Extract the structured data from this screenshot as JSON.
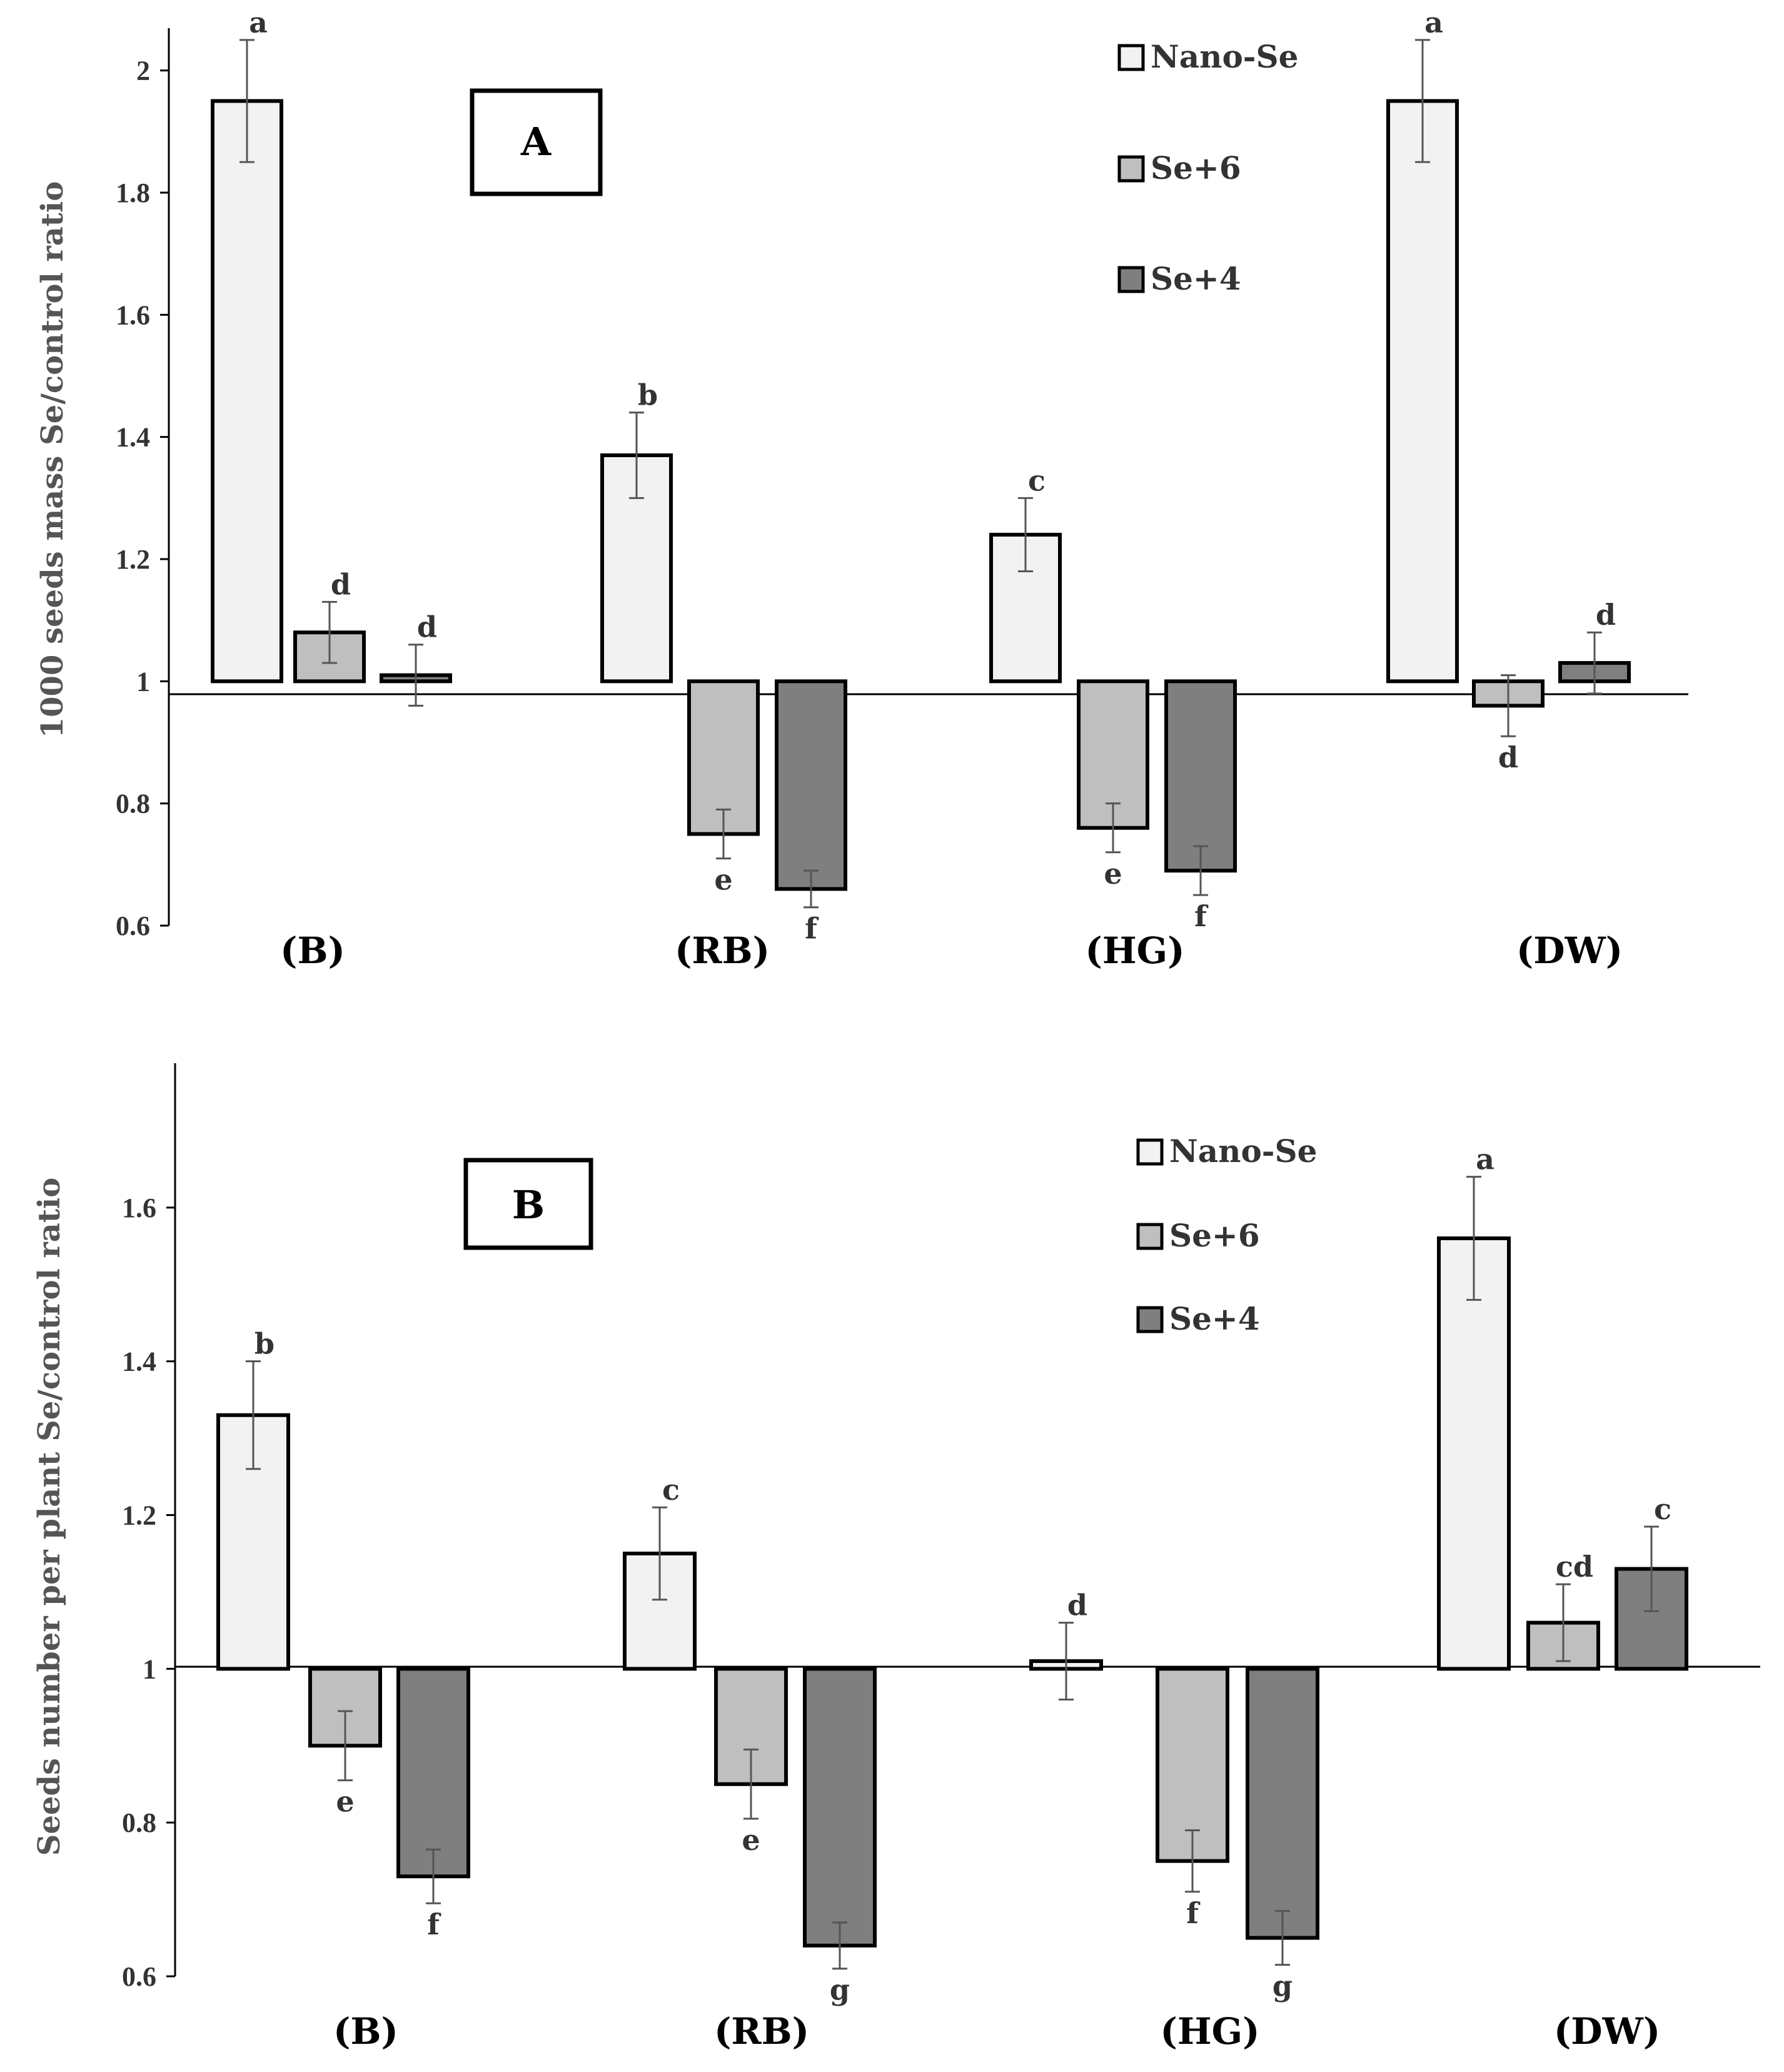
{
  "colors": {
    "nano": "#f2f2f2",
    "se6": "#bfbfbf",
    "se4": "#7f7f7f"
  },
  "chart_data": [
    {
      "type": "bar",
      "panel": "A",
      "ylabel": "1000 seeds mass Se/control ratio",
      "categories": [
        "(B)",
        "(RB)",
        "(HG)",
        "(DW)"
      ],
      "baseline": 1,
      "ylim": [
        0.6,
        2.1
      ],
      "yticks": [
        0.6,
        0.8,
        1,
        1.2,
        1.4,
        1.6,
        1.8,
        2
      ],
      "ytick_labels": [
        "0.6",
        "0.8",
        "1",
        "1.2",
        "1.4",
        "1.6",
        "1.8",
        "2"
      ],
      "series": [
        {
          "name": "Nano-Se",
          "values": [
            1.95,
            1.37,
            1.24,
            1.95
          ],
          "errors": [
            0.1,
            0.07,
            0.06,
            0.1
          ],
          "letters": [
            "a",
            "b",
            "c",
            "a"
          ]
        },
        {
          "name": "Se+6",
          "values": [
            1.08,
            0.75,
            0.76,
            0.96
          ],
          "errors": [
            0.05,
            0.04,
            0.04,
            0.05
          ],
          "letters": [
            "d",
            "e",
            "e",
            "d"
          ]
        },
        {
          "name": "Se+4",
          "values": [
            1.01,
            0.66,
            0.69,
            1.03
          ],
          "errors": [
            0.05,
            0.03,
            0.04,
            0.05
          ],
          "letters": [
            "d",
            "f",
            "f",
            "d"
          ]
        }
      ]
    },
    {
      "type": "bar",
      "panel": "B",
      "ylabel": "Seeds number per plant Se/control ratio",
      "categories": [
        "(B)",
        "(RB)",
        "(HG)",
        "(DW)"
      ],
      "baseline": 1,
      "ylim": [
        0.6,
        1.8
      ],
      "yticks": [
        0.6,
        0.8,
        1,
        1.2,
        1.4,
        1.6
      ],
      "ytick_labels": [
        "0.6",
        "0.8",
        "1",
        "1.2",
        "1.4",
        "1.6"
      ],
      "series": [
        {
          "name": "Nano-Se",
          "values": [
            1.33,
            1.15,
            1.01,
            1.56
          ],
          "errors": [
            0.07,
            0.06,
            0.05,
            0.08
          ],
          "letters": [
            "b",
            "c",
            "d",
            "a"
          ]
        },
        {
          "name": "Se+6",
          "values": [
            0.9,
            0.85,
            0.75,
            1.06
          ],
          "errors": [
            0.045,
            0.045,
            0.04,
            0.05
          ],
          "letters": [
            "e",
            "e",
            "f",
            "cd"
          ]
        },
        {
          "name": "Se+4",
          "values": [
            0.73,
            0.64,
            0.65,
            1.13
          ],
          "errors": [
            0.035,
            0.03,
            0.035,
            0.055
          ],
          "letters": [
            "f",
            "g",
            "g",
            "c"
          ]
        }
      ]
    }
  ]
}
